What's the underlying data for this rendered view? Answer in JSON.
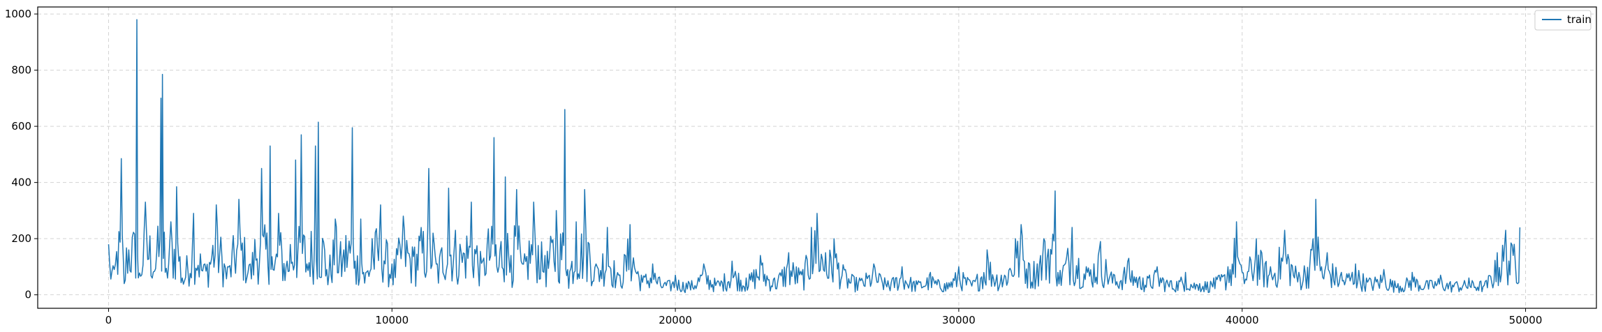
{
  "chart_data": {
    "type": "line",
    "title": "",
    "xlabel": "",
    "ylabel": "",
    "xlim": [
      -2500,
      52500
    ],
    "ylim": [
      -48,
      1025
    ],
    "xticks": [
      0,
      10000,
      20000,
      30000,
      40000,
      50000
    ],
    "xtick_labels": [
      "0",
      "10000",
      "20000",
      "30000",
      "40000",
      "50000"
    ],
    "yticks": [
      0,
      200,
      400,
      600,
      800,
      1000
    ],
    "ytick_labels": [
      "0",
      "200",
      "400",
      "600",
      "800",
      "1000"
    ],
    "grid": true,
    "grid_style": "dashed",
    "legend_position": "top-right",
    "series": [
      {
        "name": "train",
        "color": "#1f77b4",
        "x": [
          0,
          200,
          450,
          550,
          1000,
          1050,
          1300,
          1700,
          1850,
          1900,
          2000,
          2200,
          2400,
          2600,
          3000,
          3400,
          3800,
          4200,
          4600,
          5000,
          5400,
          5700,
          5800,
          6000,
          6300,
          6600,
          6800,
          7000,
          7300,
          7400,
          7700,
          8000,
          8300,
          8600,
          8700,
          8900,
          9000,
          9300,
          9600,
          10000,
          10400,
          10800,
          11300,
          11600,
          12000,
          12400,
          12800,
          13200,
          13600,
          13700,
          14000,
          14200,
          14400,
          14600,
          15000,
          15400,
          15800,
          16100,
          16200,
          16500,
          16800,
          17200,
          17600,
          18000,
          18400,
          18800,
          19200,
          19600,
          20000,
          20500,
          21000,
          21500,
          22000,
          22500,
          23000,
          23500,
          24000,
          24500,
          24800,
          25000,
          25300,
          25600,
          26000,
          26500,
          27000,
          27500,
          28000,
          28500,
          29000,
          29500,
          30000,
          30500,
          31000,
          31500,
          32000,
          32200,
          32500,
          33000,
          33400,
          33500,
          34000,
          34500,
          35000,
          35500,
          36000,
          36500,
          37000,
          37500,
          38000,
          38500,
          39000,
          39500,
          39800,
          40000,
          40500,
          41000,
          41500,
          42000,
          42500,
          42600,
          42800,
          43000,
          43500,
          44000,
          44500,
          45000,
          45500,
          46000,
          46500,
          47000,
          47500,
          48000,
          48500,
          49000,
          49300,
          49600,
          49800
        ],
        "y": [
          180,
          90,
          485,
          40,
          980,
          60,
          330,
          150,
          700,
          785,
          80,
          260,
          385,
          60,
          290,
          110,
          320,
          100,
          340,
          110,
          450,
          530,
          90,
          290,
          120,
          480,
          570,
          110,
          530,
          615,
          90,
          270,
          160,
          595,
          120,
          270,
          80,
          200,
          320,
          110,
          280,
          170,
          450,
          110,
          380,
          180,
          330,
          120,
          560,
          100,
          420,
          140,
          375,
          110,
          330,
          140,
          300,
          660,
          90,
          260,
          375,
          110,
          240,
          70,
          250,
          70,
          110,
          40,
          70,
          40,
          110,
          50,
          120,
          60,
          140,
          60,
          150,
          90,
          240,
          290,
          150,
          200,
          90,
          60,
          110,
          50,
          100,
          50,
          80,
          40,
          100,
          50,
          160,
          70,
          200,
          250,
          110,
          200,
          370,
          80,
          240,
          100,
          190,
          70,
          130,
          60,
          100,
          50,
          80,
          40,
          60,
          100,
          260,
          80,
          200,
          100,
          230,
          80,
          200,
          340,
          100,
          150,
          80,
          110,
          60,
          90,
          40,
          80,
          50,
          70,
          40,
          60,
          30,
          150,
          230,
          180,
          240
        ]
      }
    ]
  }
}
